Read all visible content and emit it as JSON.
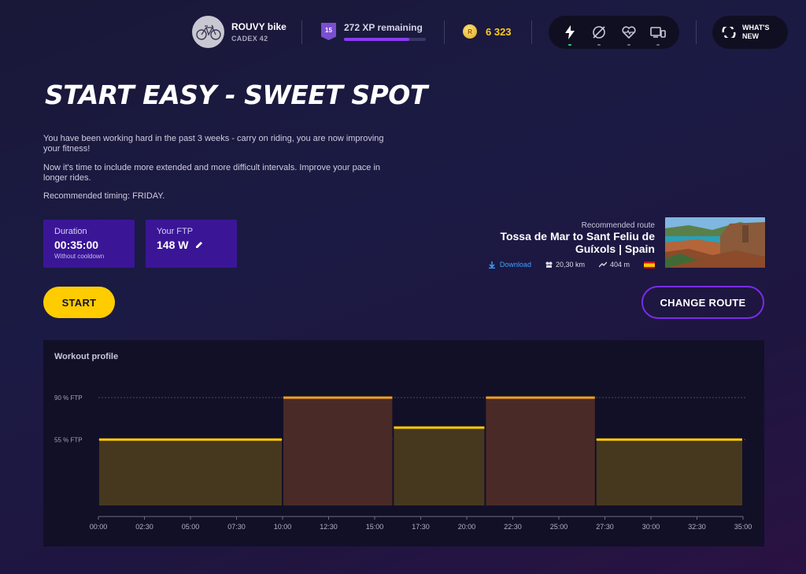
{
  "header": {
    "bike": {
      "name": "ROUVY bike",
      "model": "CADEX 42"
    },
    "xp": {
      "level": "15",
      "label": "272 XP remaining",
      "progress": 0.8
    },
    "coins": {
      "symbol": "R",
      "value": "6 323"
    },
    "sensors": [
      {
        "icon": "power-icon",
        "connected": true
      },
      {
        "icon": "speed-cadence-icon",
        "connected": false
      },
      {
        "icon": "heart-rate-icon",
        "connected": false
      },
      {
        "icon": "trainer-control-icon",
        "connected": false
      }
    ],
    "whats_new": "WHAT'S NEW"
  },
  "workout": {
    "title": "START EASY - SWEET SPOT",
    "description": [
      "You have been working hard in the past 3 weeks - carry on riding, you are now improving your fitness!",
      "Now it's time to include more extended and more difficult intervals. Improve your pace in longer rides.",
      "Recommended timing: FRIDAY."
    ],
    "duration": {
      "label": "Duration",
      "value": "00:35:00",
      "note": "Without cooldown"
    },
    "ftp": {
      "label": "Your FTP",
      "value": "148 W"
    }
  },
  "route": {
    "kicker": "Recommended route",
    "name": "Tossa de Mar to Sant Feliu de Guíxols | Spain",
    "download": "Download",
    "distance": "20,30 km",
    "elevation": "404 m"
  },
  "buttons": {
    "start": "START",
    "change_route": "CHANGE ROUTE"
  },
  "chart": {
    "title": "Workout profile"
  },
  "chart_data": {
    "type": "area",
    "xlabel": "",
    "ylabel": "",
    "xlim_min": [
      0,
      35
    ],
    "x_ticks": [
      "00:00",
      "02:30",
      "05:00",
      "07:30",
      "10:00",
      "12:30",
      "15:00",
      "17:30",
      "20:00",
      "22:30",
      "25:00",
      "27:30",
      "30:00",
      "32:30",
      "35:00"
    ],
    "y_reference_lines": [
      {
        "label": "90 % FTP",
        "value": 90
      },
      {
        "label": "55 % FTP",
        "value": 55
      }
    ],
    "segments": [
      {
        "start_min": 0,
        "end_min": 10,
        "ftp_percent": 55,
        "color": "#46381f",
        "line": "#ffcc00"
      },
      {
        "start_min": 10,
        "end_min": 16,
        "ftp_percent": 90,
        "color": "#4a2a26",
        "line": "#f0a020"
      },
      {
        "start_min": 16,
        "end_min": 21,
        "ftp_percent": 65,
        "color": "#46381f",
        "line": "#ffcc00"
      },
      {
        "start_min": 21,
        "end_min": 27,
        "ftp_percent": 90,
        "color": "#4a2a26",
        "line": "#f0a020"
      },
      {
        "start_min": 27,
        "end_min": 35,
        "ftp_percent": 55,
        "color": "#46381f",
        "line": "#ffcc00"
      }
    ]
  }
}
